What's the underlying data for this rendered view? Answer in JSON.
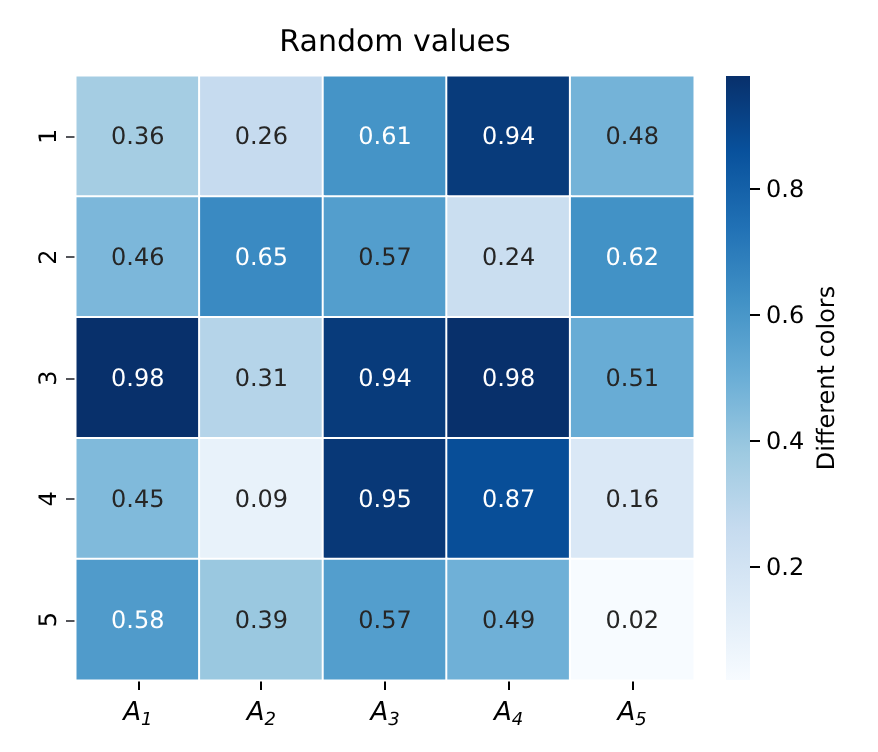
{
  "chart_data": {
    "type": "heatmap",
    "title": "Random values",
    "clabel": "Different colors",
    "categories": [
      "A$_{1}$",
      "A$_{2}$",
      "A$_{3}$",
      "A$_{4}$",
      "A$_{5}$"
    ],
    "y_categories": [
      "1",
      "2",
      "3",
      "4",
      "5"
    ],
    "cells": [
      [
        0.36,
        0.26,
        0.61,
        0.94,
        0.48
      ],
      [
        0.46,
        0.65,
        0.57,
        0.24,
        0.62
      ],
      [
        0.98,
        0.31,
        0.94,
        0.98,
        0.51
      ],
      [
        0.45,
        0.09,
        0.95,
        0.87,
        0.16
      ],
      [
        0.58,
        0.39,
        0.57,
        0.49,
        0.02
      ]
    ],
    "clim": [
      0.02,
      0.98
    ],
    "cticks": [
      0.2,
      0.4,
      0.6,
      0.8
    ],
    "data_labels": true
  }
}
